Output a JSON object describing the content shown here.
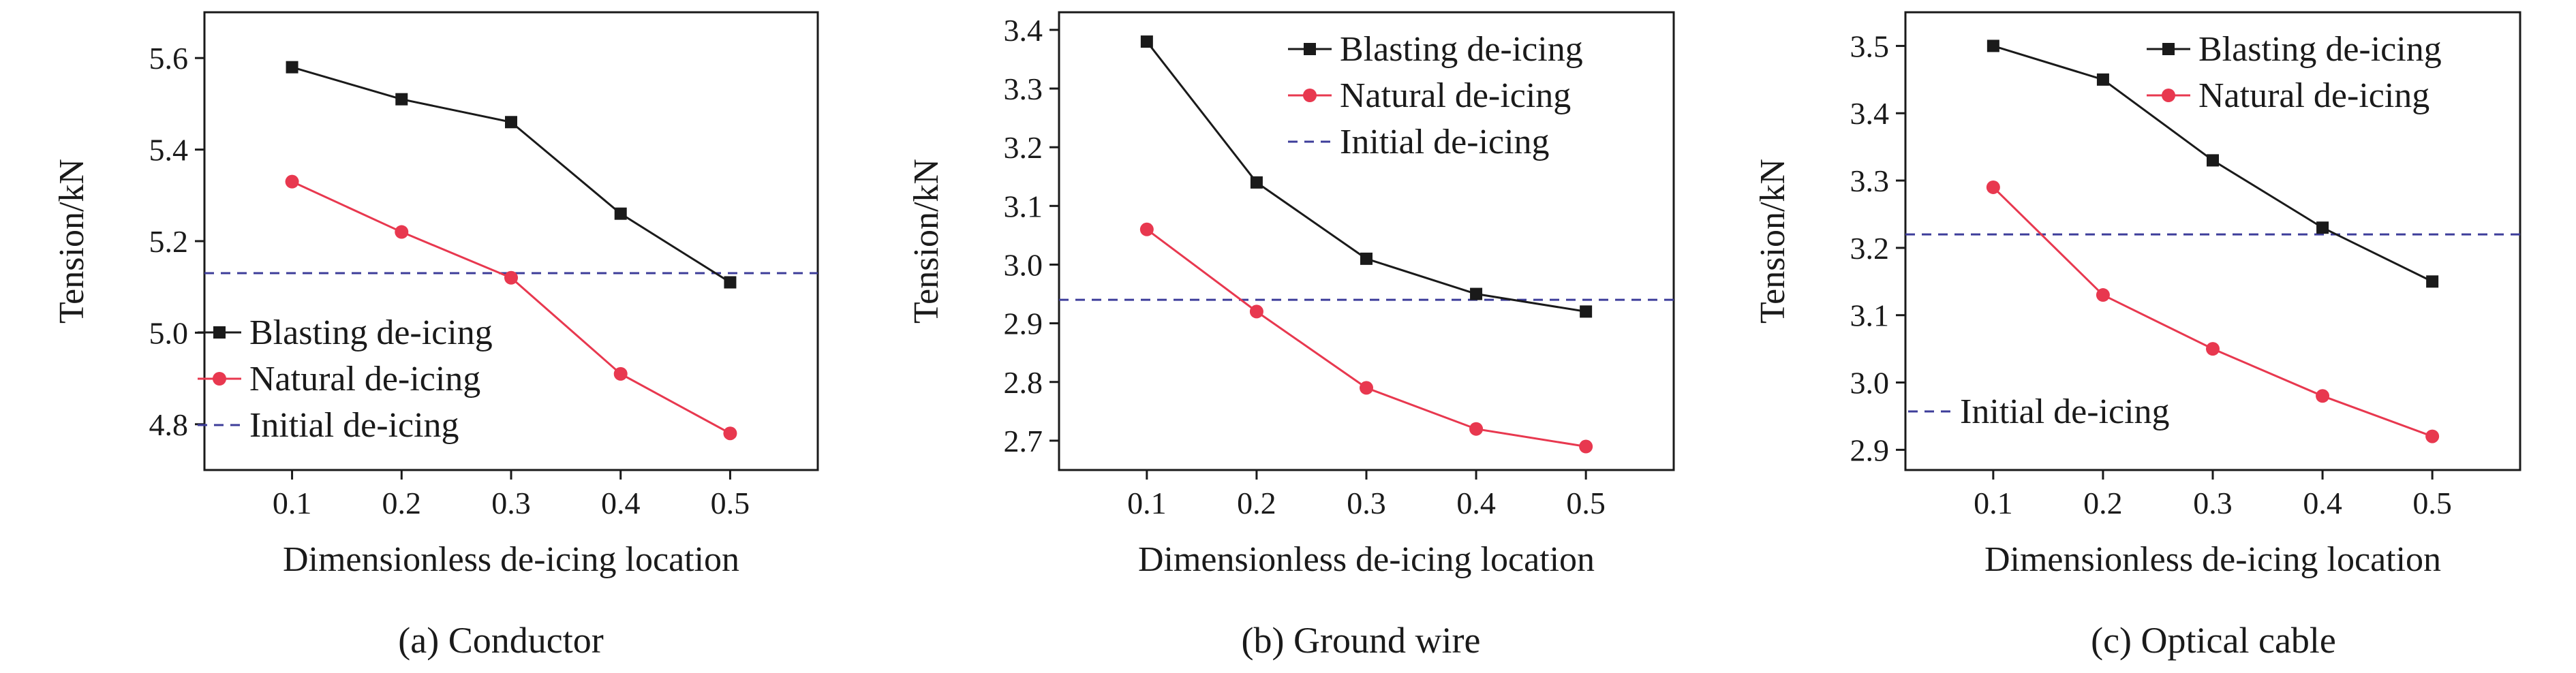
{
  "colors": {
    "blasting": "#1a1a1a",
    "natural": "#e8384f",
    "initial": "#3d3d9a"
  },
  "chart_data": [
    {
      "type": "line",
      "caption": "(a) Conductor",
      "xlabel": "Dimensionless de-icing location",
      "ylabel": "Tension/kN",
      "x": [
        0.1,
        0.2,
        0.3,
        0.4,
        0.5
      ],
      "xlim": [
        0.02,
        0.58
      ],
      "ylim": [
        4.7,
        5.7
      ],
      "xticks": [
        "0.1",
        "0.2",
        "0.3",
        "0.4",
        "0.5"
      ],
      "yticks": [
        "4.8",
        "5.0",
        "5.2",
        "5.4",
        "5.6"
      ],
      "series": [
        {
          "name": "Blasting de-icing",
          "style": "solid-square",
          "values": [
            5.58,
            5.51,
            5.46,
            5.26,
            5.11
          ]
        },
        {
          "name": "Natural de-icing",
          "style": "solid-circle",
          "values": [
            5.33,
            5.22,
            5.12,
            4.91,
            4.78
          ]
        },
        {
          "name": "Initial de-icing",
          "style": "dashed",
          "constant": 5.13
        }
      ],
      "legend_position": "bottom-left"
    },
    {
      "type": "line",
      "caption": "(b) Ground wire",
      "xlabel": "Dimensionless de-icing location",
      "ylabel": "Tension/kN",
      "x": [
        0.1,
        0.2,
        0.3,
        0.4,
        0.5
      ],
      "xlim": [
        0.02,
        0.58
      ],
      "ylim": [
        2.65,
        3.43
      ],
      "xticks": [
        "0.1",
        "0.2",
        "0.3",
        "0.4",
        "0.5"
      ],
      "yticks": [
        "2.7",
        "2.8",
        "2.9",
        "3.0",
        "3.1",
        "3.2",
        "3.3",
        "3.4"
      ],
      "series": [
        {
          "name": "Blasting de-icing",
          "style": "solid-square",
          "values": [
            3.38,
            3.14,
            3.01,
            2.95,
            2.92
          ]
        },
        {
          "name": "Natural de-icing",
          "style": "solid-circle",
          "values": [
            3.06,
            2.92,
            2.79,
            2.72,
            2.69
          ]
        },
        {
          "name": "Initial de-icing",
          "style": "dashed",
          "constant": 2.94
        }
      ],
      "legend_position": "top-right"
    },
    {
      "type": "line",
      "caption": "(c) Optical cable",
      "xlabel": "Dimensionless de-icing location",
      "ylabel": "Tension/kN",
      "x": [
        0.1,
        0.2,
        0.3,
        0.4,
        0.5
      ],
      "xlim": [
        0.02,
        0.58
      ],
      "ylim": [
        2.87,
        3.55
      ],
      "xticks": [
        "0.1",
        "0.2",
        "0.3",
        "0.4",
        "0.5"
      ],
      "yticks": [
        "2.9",
        "3.0",
        "3.1",
        "3.2",
        "3.3",
        "3.4",
        "3.5"
      ],
      "series": [
        {
          "name": "Blasting de-icing",
          "style": "solid-square",
          "values": [
            3.5,
            3.45,
            3.33,
            3.23,
            3.15
          ]
        },
        {
          "name": "Natural de-icing",
          "style": "solid-circle",
          "values": [
            3.29,
            3.13,
            3.05,
            2.98,
            2.92
          ]
        },
        {
          "name": "Initial de-icing",
          "style": "dashed",
          "constant": 3.22
        }
      ],
      "legend_position": "split: top-right and bottom-left"
    }
  ]
}
